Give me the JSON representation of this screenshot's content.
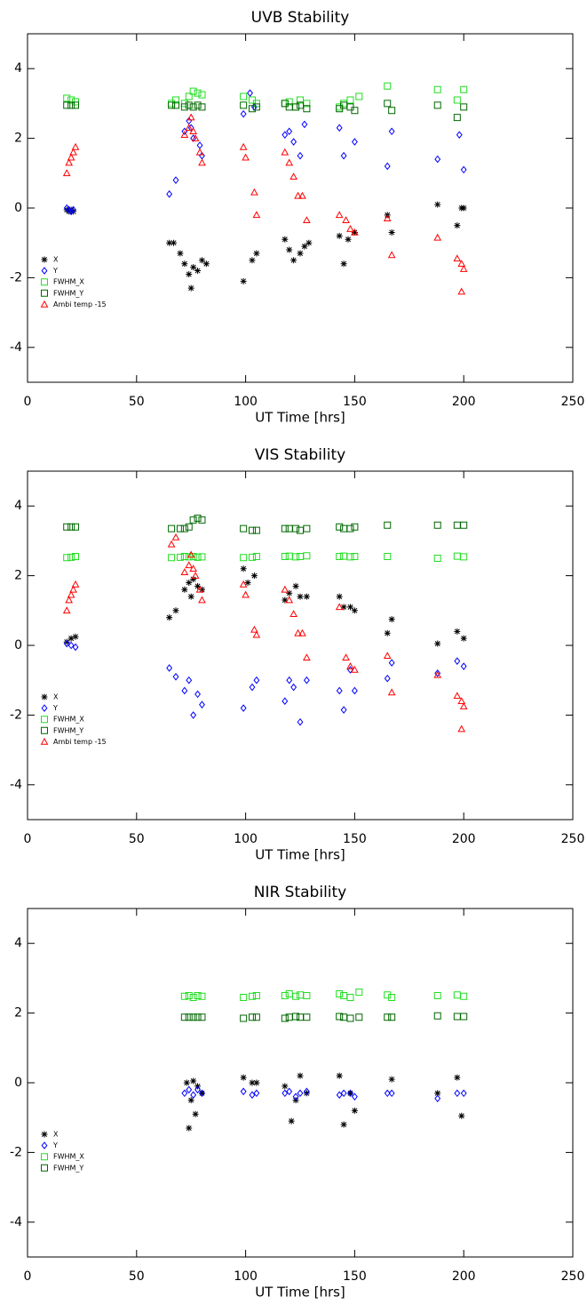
{
  "chart_data": [
    {
      "type": "scatter",
      "title": "UVB Stability",
      "x_label": "UT Time [hrs]",
      "xlim": [
        0,
        250
      ],
      "ylim": [
        -5,
        5
      ],
      "xticks": [
        0,
        50,
        100,
        150,
        200,
        250
      ],
      "yticks": [
        -4,
        -2,
        0,
        2,
        4
      ],
      "legend": "lower left",
      "series": [
        {
          "name": "X",
          "color": "#000000",
          "marker": "asterisk",
          "x": [
            18,
            19,
            20,
            21,
            65,
            67,
            70,
            72,
            74,
            75,
            76,
            78,
            80,
            82,
            99,
            103,
            105,
            118,
            120,
            122,
            125,
            127,
            129,
            143,
            145,
            147,
            150,
            165,
            167,
            188,
            197,
            199,
            200
          ],
          "values": [
            -0.05,
            -0.1,
            -0.05,
            -0.1,
            -1.0,
            -1.0,
            -1.3,
            -1.6,
            -1.9,
            -2.3,
            -1.7,
            -1.8,
            -1.5,
            -1.6,
            -2.1,
            -1.5,
            -1.3,
            -0.9,
            -1.2,
            -1.5,
            -1.3,
            -1.1,
            -1.0,
            -0.8,
            -1.6,
            -0.9,
            -0.7,
            -0.2,
            -0.7,
            0.1,
            -0.5,
            0.0,
            0.0
          ]
        },
        {
          "name": "Y",
          "color": "#0000ff",
          "marker": "diamond",
          "x": [
            18,
            19,
            20,
            21,
            65,
            68,
            72,
            74,
            75,
            76,
            79,
            80,
            99,
            102,
            104,
            118,
            120,
            122,
            125,
            127,
            143,
            145,
            150,
            165,
            167,
            188,
            198,
            200
          ],
          "values": [
            0.0,
            -0.05,
            -0.1,
            -0.05,
            0.4,
            0.8,
            2.2,
            2.5,
            2.3,
            2.0,
            1.8,
            1.5,
            2.7,
            3.3,
            2.9,
            2.1,
            2.2,
            1.9,
            1.5,
            2.4,
            2.3,
            1.5,
            1.9,
            1.2,
            2.2,
            1.4,
            2.1,
            1.1
          ]
        },
        {
          "name": "FWHM_X",
          "color": "#22dd22",
          "marker": "square",
          "x": [
            18,
            20,
            22,
            66,
            68,
            72,
            74,
            76,
            78,
            80,
            99,
            103,
            105,
            118,
            120,
            123,
            125,
            128,
            143,
            145,
            148,
            152,
            165,
            188,
            197,
            200
          ],
          "values": [
            3.15,
            3.1,
            3.05,
            3.0,
            3.1,
            3.0,
            3.2,
            3.35,
            3.3,
            3.25,
            3.2,
            3.1,
            3.0,
            3.0,
            3.05,
            2.9,
            3.1,
            3.0,
            2.9,
            3.0,
            3.1,
            3.2,
            3.5,
            3.4,
            3.1,
            3.4
          ]
        },
        {
          "name": "FWHM_Y",
          "color": "#006600",
          "marker": "square",
          "x": [
            18,
            20,
            22,
            66,
            68,
            72,
            74,
            76,
            78,
            80,
            99,
            103,
            105,
            118,
            120,
            123,
            125,
            128,
            143,
            145,
            148,
            150,
            165,
            167,
            188,
            197,
            200
          ],
          "values": [
            2.95,
            2.95,
            2.95,
            2.95,
            2.95,
            2.9,
            2.95,
            2.9,
            2.95,
            2.9,
            2.95,
            2.85,
            2.9,
            3.0,
            2.9,
            2.9,
            2.95,
            2.85,
            2.85,
            2.95,
            2.9,
            2.8,
            3.0,
            2.8,
            2.95,
            2.6,
            2.9
          ]
        },
        {
          "name": "Ambi temp -15",
          "color": "#ff0000",
          "marker": "triangle",
          "x": [
            18,
            19,
            20,
            21,
            22,
            72,
            74,
            75,
            76,
            77,
            79,
            80,
            99,
            100,
            104,
            105,
            118,
            120,
            122,
            124,
            126,
            128,
            143,
            146,
            148,
            150,
            165,
            167,
            188,
            197,
            199,
            200,
            199
          ],
          "values": [
            1.0,
            1.3,
            1.45,
            1.6,
            1.75,
            2.1,
            2.3,
            2.6,
            2.2,
            2.0,
            1.6,
            1.3,
            1.75,
            1.45,
            0.45,
            -0.2,
            1.6,
            1.3,
            0.9,
            0.35,
            0.35,
            -0.35,
            -0.2,
            -0.35,
            -0.6,
            -0.7,
            -0.3,
            -1.35,
            -0.85,
            -1.45,
            -1.6,
            -1.75,
            -2.4
          ]
        }
      ]
    },
    {
      "type": "scatter",
      "title": "VIS Stability",
      "x_label": "UT Time [hrs]",
      "xlim": [
        0,
        250
      ],
      "ylim": [
        -5,
        5
      ],
      "xticks": [
        0,
        50,
        100,
        150,
        200,
        250
      ],
      "yticks": [
        -4,
        -2,
        0,
        2,
        4
      ],
      "legend": "lower left",
      "series": [
        {
          "name": "X",
          "color": "#000000",
          "marker": "asterisk",
          "x": [
            18,
            20,
            22,
            65,
            68,
            72,
            74,
            75,
            76,
            78,
            80,
            99,
            101,
            104,
            118,
            120,
            123,
            125,
            128,
            143,
            145,
            148,
            150,
            165,
            167,
            188,
            197,
            200
          ],
          "values": [
            0.1,
            0.2,
            0.25,
            0.8,
            1.0,
            1.6,
            1.8,
            1.4,
            1.9,
            1.7,
            1.6,
            2.2,
            1.8,
            2.0,
            1.3,
            1.5,
            1.7,
            1.4,
            1.4,
            1.4,
            1.1,
            1.1,
            1.0,
            0.35,
            0.75,
            0.05,
            0.4,
            0.2
          ]
        },
        {
          "name": "Y",
          "color": "#0000ff",
          "marker": "diamond",
          "x": [
            18,
            20,
            22,
            65,
            68,
            72,
            74,
            76,
            78,
            80,
            99,
            103,
            105,
            118,
            120,
            122,
            125,
            128,
            143,
            145,
            148,
            150,
            165,
            167,
            188,
            197,
            200
          ],
          "values": [
            0.05,
            0.0,
            -0.05,
            -0.65,
            -0.9,
            -1.3,
            -1.0,
            -2.0,
            -1.4,
            -1.7,
            -1.8,
            -1.2,
            -1.0,
            -1.6,
            -1.0,
            -1.2,
            -2.2,
            -1.0,
            -1.3,
            -1.85,
            -0.7,
            -1.3,
            -0.95,
            -0.5,
            -0.8,
            -0.45,
            -0.6
          ]
        },
        {
          "name": "FWHM_X",
          "color": "#22dd22",
          "marker": "square",
          "x": [
            18,
            20,
            22,
            66,
            70,
            72,
            74,
            76,
            78,
            80,
            99,
            103,
            105,
            118,
            120,
            123,
            125,
            128,
            143,
            145,
            148,
            150,
            165,
            188,
            197,
            200
          ],
          "values": [
            2.52,
            2.53,
            2.55,
            2.52,
            2.53,
            2.55,
            2.54,
            2.55,
            2.53,
            2.54,
            2.52,
            2.53,
            2.55,
            2.55,
            2.56,
            2.54,
            2.55,
            2.57,
            2.55,
            2.56,
            2.54,
            2.55,
            2.55,
            2.5,
            2.56,
            2.54
          ]
        },
        {
          "name": "FWHM_Y",
          "color": "#006600",
          "marker": "square",
          "x": [
            18,
            20,
            22,
            66,
            70,
            72,
            74,
            76,
            78,
            80,
            99,
            103,
            105,
            118,
            120,
            123,
            125,
            128,
            143,
            145,
            148,
            150,
            165,
            188,
            197,
            200
          ],
          "values": [
            3.4,
            3.4,
            3.4,
            3.35,
            3.35,
            3.35,
            3.4,
            3.6,
            3.65,
            3.6,
            3.35,
            3.3,
            3.3,
            3.35,
            3.35,
            3.35,
            3.3,
            3.35,
            3.4,
            3.35,
            3.35,
            3.4,
            3.45,
            3.45,
            3.45,
            3.45
          ]
        },
        {
          "name": "Ambi temp -15",
          "color": "#ff0000",
          "marker": "triangle",
          "x": [
            18,
            19,
            20,
            21,
            22,
            66,
            68,
            72,
            74,
            75,
            76,
            77,
            79,
            80,
            99,
            100,
            104,
            105,
            118,
            120,
            122,
            124,
            126,
            128,
            143,
            146,
            148,
            150,
            165,
            167,
            188,
            197,
            199,
            200,
            199
          ],
          "values": [
            1.0,
            1.3,
            1.45,
            1.6,
            1.75,
            2.9,
            3.1,
            2.1,
            2.3,
            2.6,
            2.2,
            2.0,
            1.6,
            1.3,
            1.75,
            1.45,
            0.45,
            0.3,
            1.6,
            1.3,
            0.9,
            0.35,
            0.35,
            -0.35,
            1.1,
            -0.35,
            -0.6,
            -0.7,
            -0.3,
            -1.35,
            -0.85,
            -1.45,
            -1.6,
            -1.75,
            -2.4
          ]
        }
      ]
    },
    {
      "type": "scatter",
      "title": "NIR Stability",
      "x_label": "UT Time [hrs]",
      "xlim": [
        0,
        250
      ],
      "ylim": [
        -5,
        5
      ],
      "xticks": [
        0,
        50,
        100,
        150,
        200,
        250
      ],
      "yticks": [
        -4,
        -2,
        0,
        2,
        4
      ],
      "legend": "lower left",
      "series": [
        {
          "name": "X",
          "color": "#000000",
          "marker": "asterisk",
          "x": [
            73,
            74,
            75,
            76,
            77,
            78,
            80,
            99,
            103,
            105,
            118,
            121,
            123,
            125,
            128,
            143,
            145,
            148,
            150,
            167,
            188,
            197,
            199
          ],
          "values": [
            0.0,
            -1.3,
            -0.5,
            0.05,
            -0.9,
            -0.1,
            -0.3,
            0.15,
            0.0,
            0.0,
            -0.1,
            -1.1,
            -0.5,
            0.2,
            -0.3,
            0.2,
            -1.2,
            -0.3,
            -0.8,
            0.1,
            -0.3,
            0.15,
            -0.95
          ]
        },
        {
          "name": "Y",
          "color": "#0000ff",
          "marker": "diamond",
          "x": [
            72,
            74,
            76,
            78,
            80,
            99,
            103,
            105,
            118,
            120,
            123,
            125,
            128,
            143,
            145,
            148,
            150,
            165,
            167,
            188,
            197,
            200
          ],
          "values": [
            -0.3,
            -0.2,
            -0.35,
            -0.2,
            -0.3,
            -0.25,
            -0.35,
            -0.3,
            -0.3,
            -0.25,
            -0.4,
            -0.3,
            -0.25,
            -0.35,
            -0.3,
            -0.3,
            -0.4,
            -0.3,
            -0.3,
            -0.45,
            -0.3,
            -0.3
          ]
        },
        {
          "name": "FWHM_X",
          "color": "#22dd22",
          "marker": "square",
          "x": [
            72,
            74,
            76,
            78,
            80,
            99,
            103,
            105,
            118,
            120,
            123,
            125,
            128,
            143,
            145,
            148,
            152,
            165,
            167,
            188,
            197,
            200
          ],
          "values": [
            2.48,
            2.5,
            2.45,
            2.5,
            2.48,
            2.45,
            2.48,
            2.5,
            2.5,
            2.55,
            2.48,
            2.52,
            2.5,
            2.55,
            2.5,
            2.45,
            2.6,
            2.52,
            2.45,
            2.5,
            2.52,
            2.48
          ]
        },
        {
          "name": "FWHM_Y",
          "color": "#006600",
          "marker": "square",
          "x": [
            72,
            74,
            76,
            78,
            80,
            99,
            103,
            105,
            118,
            120,
            123,
            125,
            128,
            143,
            145,
            148,
            152,
            165,
            167,
            188,
            197,
            200
          ],
          "values": [
            1.88,
            1.88,
            1.88,
            1.88,
            1.88,
            1.85,
            1.88,
            1.88,
            1.85,
            1.88,
            1.9,
            1.88,
            1.88,
            1.9,
            1.88,
            1.85,
            1.88,
            1.88,
            1.88,
            1.92,
            1.9,
            1.9
          ]
        }
      ]
    }
  ]
}
